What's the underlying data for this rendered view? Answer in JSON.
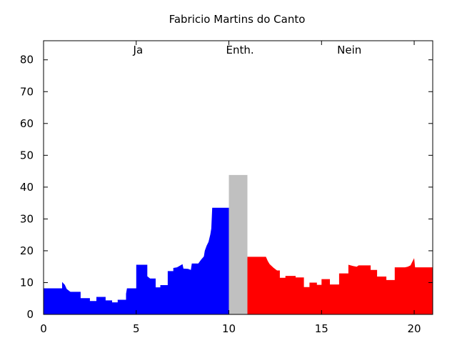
{
  "chart_data": {
    "type": "area",
    "title": "Fabricio Martins do Canto",
    "xlabel": "",
    "ylabel": "",
    "xlim": [
      0,
      21
    ],
    "ylim": [
      0,
      86
    ],
    "xticks": [
      0,
      5,
      10,
      15,
      20
    ],
    "yticks": [
      0,
      10,
      20,
      30,
      40,
      50,
      60,
      70,
      80
    ],
    "grid": false,
    "annotations": [
      {
        "text": "Ja",
        "x": 5.1,
        "y": 82
      },
      {
        "text": "Enth.",
        "x": 10.6,
        "y": 82
      },
      {
        "text": "Nein",
        "x": 16.5,
        "y": 82
      }
    ],
    "series": [
      {
        "color": "#0000ff",
        "points": [
          [
            0.0,
            8.2
          ],
          [
            1.0,
            8.2
          ],
          [
            1.0,
            10.2
          ],
          [
            1.15,
            9.3
          ],
          [
            1.25,
            8.0
          ],
          [
            1.45,
            7.1
          ],
          [
            2.0,
            7.1
          ],
          [
            2.0,
            5.1
          ],
          [
            2.5,
            5.1
          ],
          [
            2.5,
            4.2
          ],
          [
            2.85,
            4.2
          ],
          [
            2.85,
            5.5
          ],
          [
            3.35,
            5.5
          ],
          [
            3.35,
            4.4
          ],
          [
            3.7,
            4.4
          ],
          [
            3.7,
            3.8
          ],
          [
            4.0,
            3.8
          ],
          [
            4.0,
            4.6
          ],
          [
            4.45,
            4.6
          ],
          [
            4.45,
            6.5
          ],
          [
            4.5,
            8.2
          ],
          [
            5.0,
            8.2
          ],
          [
            5.0,
            15.6
          ],
          [
            5.6,
            15.6
          ],
          [
            5.6,
            12.0
          ],
          [
            5.75,
            11.3
          ],
          [
            6.05,
            11.3
          ],
          [
            6.05,
            8.5
          ],
          [
            6.3,
            8.5
          ],
          [
            6.3,
            9.2
          ],
          [
            6.7,
            9.2
          ],
          [
            6.7,
            13.6
          ],
          [
            7.0,
            13.6
          ],
          [
            7.0,
            14.6
          ],
          [
            7.2,
            14.8
          ],
          [
            7.35,
            15.3
          ],
          [
            7.5,
            15.8
          ],
          [
            7.55,
            14.4
          ],
          [
            7.8,
            14.3
          ],
          [
            7.95,
            14.0
          ],
          [
            8.0,
            16.0
          ],
          [
            8.35,
            16.0
          ],
          [
            8.5,
            17.2
          ],
          [
            8.65,
            18.2
          ],
          [
            8.7,
            20.0
          ],
          [
            8.8,
            21.6
          ],
          [
            8.9,
            22.8
          ],
          [
            9.0,
            25.2
          ],
          [
            9.05,
            27.0
          ],
          [
            9.1,
            33.5
          ],
          [
            10.0,
            33.5
          ],
          [
            10.0,
            0
          ],
          [
            0.0,
            0
          ]
        ]
      },
      {
        "color": "#c0c0c0",
        "points": [
          [
            10.0,
            0
          ],
          [
            10.0,
            43.8
          ],
          [
            11.0,
            43.8
          ],
          [
            11.0,
            0
          ]
        ]
      },
      {
        "color": "#ff0000",
        "points": [
          [
            11.0,
            0
          ],
          [
            11.0,
            18.1
          ],
          [
            12.0,
            18.1
          ],
          [
            12.1,
            16.8
          ],
          [
            12.2,
            15.8
          ],
          [
            12.4,
            14.7
          ],
          [
            12.6,
            13.8
          ],
          [
            12.75,
            13.8
          ],
          [
            12.75,
            11.5
          ],
          [
            13.05,
            11.5
          ],
          [
            13.05,
            12.1
          ],
          [
            13.6,
            12.1
          ],
          [
            13.6,
            11.6
          ],
          [
            14.05,
            11.6
          ],
          [
            14.05,
            8.6
          ],
          [
            14.35,
            8.6
          ],
          [
            14.35,
            10.0
          ],
          [
            14.75,
            10.0
          ],
          [
            14.75,
            9.3
          ],
          [
            15.0,
            9.3
          ],
          [
            15.0,
            11.1
          ],
          [
            15.45,
            11.1
          ],
          [
            15.45,
            9.4
          ],
          [
            15.95,
            9.4
          ],
          [
            15.95,
            12.9
          ],
          [
            16.45,
            12.9
          ],
          [
            16.45,
            15.6
          ],
          [
            16.7,
            15.2
          ],
          [
            16.9,
            15.0
          ],
          [
            17.0,
            15.4
          ],
          [
            17.65,
            15.4
          ],
          [
            17.65,
            14.0
          ],
          [
            18.0,
            14.0
          ],
          [
            18.0,
            11.9
          ],
          [
            18.5,
            11.9
          ],
          [
            18.5,
            10.8
          ],
          [
            18.95,
            10.8
          ],
          [
            18.95,
            14.8
          ],
          [
            19.5,
            14.8
          ],
          [
            19.65,
            15.0
          ],
          [
            19.8,
            15.4
          ],
          [
            19.9,
            16.6
          ],
          [
            20.0,
            17.7
          ],
          [
            20.05,
            14.8
          ],
          [
            21.0,
            14.8
          ],
          [
            21.0,
            0
          ]
        ]
      }
    ]
  }
}
